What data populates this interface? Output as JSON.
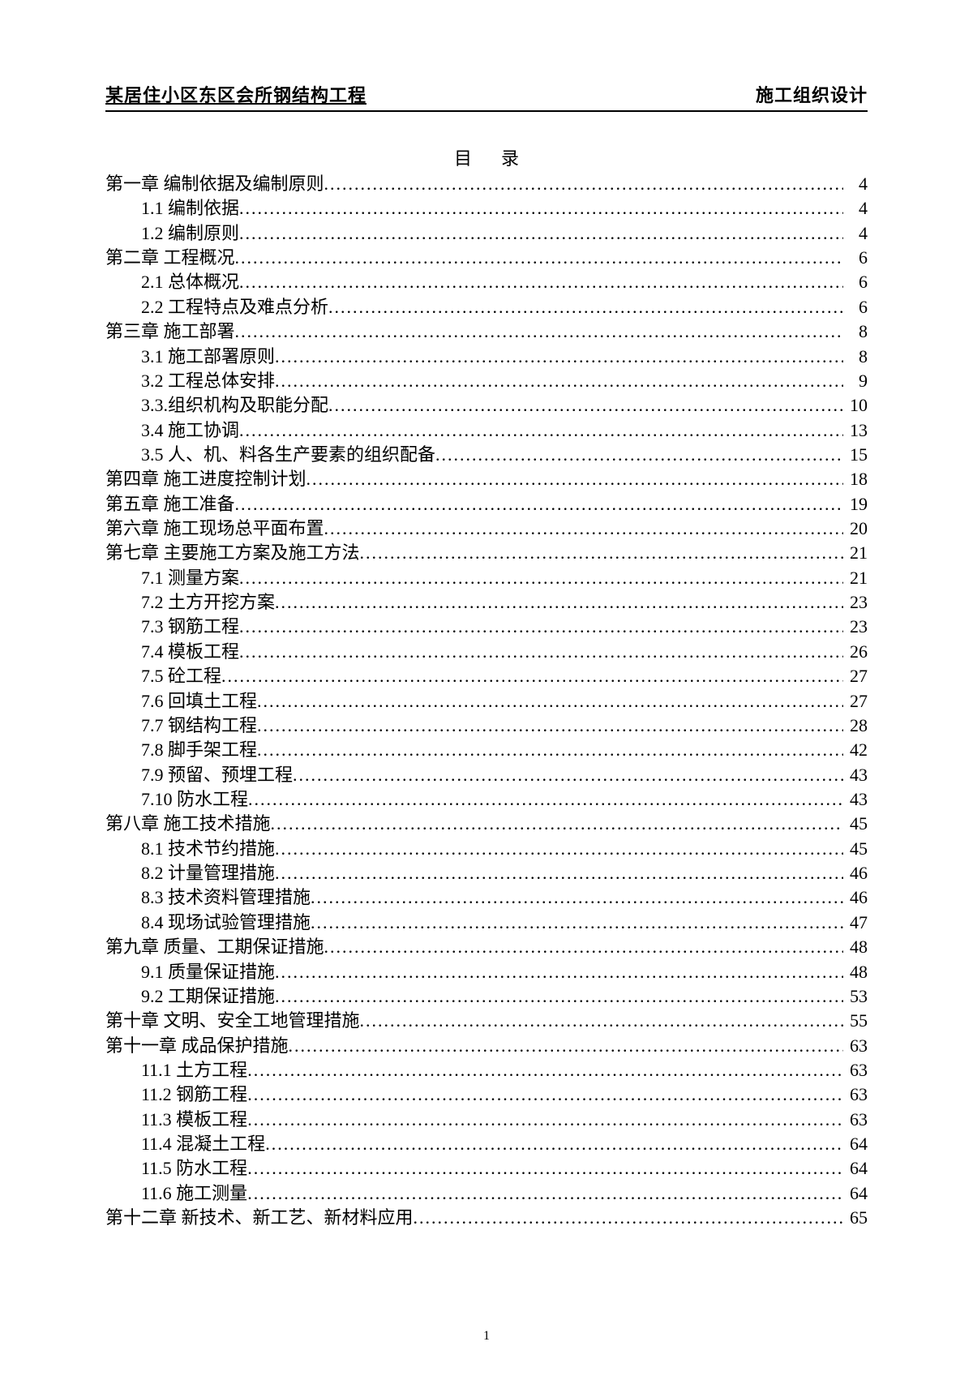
{
  "header": {
    "left": "某居住小区东区会所钢结构工程",
    "right": "施工组织设计"
  },
  "toc_title": "目录",
  "page_number": "1",
  "toc": [
    {
      "level": 1,
      "label": "第一章 编制依据及编制原则",
      "page": "4"
    },
    {
      "level": 2,
      "label": "1.1 编制依据",
      "page": "4"
    },
    {
      "level": 2,
      "label": "1.2 编制原则",
      "page": "4"
    },
    {
      "level": 1,
      "label": "第二章 工程概况",
      "page": "6"
    },
    {
      "level": 2,
      "label": "2.1 总体概况",
      "page": "6"
    },
    {
      "level": 2,
      "label": "2.2 工程特点及难点分析",
      "page": "6"
    },
    {
      "level": 1,
      "label": "第三章 施工部署",
      "page": "8"
    },
    {
      "level": 2,
      "label": "3.1 施工部署原则",
      "page": "8"
    },
    {
      "level": 2,
      "label": "3.2 工程总体安排",
      "page": "9"
    },
    {
      "level": 2,
      "label": "3.3.组织机构及职能分配",
      "page": "10"
    },
    {
      "level": 2,
      "label": "3.4 施工协调",
      "page": "13"
    },
    {
      "level": 2,
      "label": "3.5 人、机、料各生产要素的组织配备",
      "page": "15"
    },
    {
      "level": 1,
      "label": "第四章 施工进度控制计划",
      "page": "18"
    },
    {
      "level": 1,
      "label": "第五章 施工准备",
      "page": "19"
    },
    {
      "level": 1,
      "label": "第六章 施工现场总平面布置",
      "page": "20"
    },
    {
      "level": 1,
      "label": "第七章 主要施工方案及施工方法",
      "page": "21"
    },
    {
      "level": 2,
      "label": "7.1 测量方案",
      "page": "21"
    },
    {
      "level": 2,
      "label": "7.2 土方开挖方案",
      "page": "23"
    },
    {
      "level": 2,
      "label": "7.3 钢筋工程",
      "page": "23"
    },
    {
      "level": 2,
      "label": "7.4 模板工程",
      "page": "26"
    },
    {
      "level": 2,
      "label": "7.5 砼工程",
      "page": "27"
    },
    {
      "level": 2,
      "label": "7.6 回填土工程",
      "page": "27"
    },
    {
      "level": 2,
      "label": "7.7 钢结构工程",
      "page": "28"
    },
    {
      "level": 2,
      "label": "7.8 脚手架工程",
      "page": "42"
    },
    {
      "level": 2,
      "label": "7.9 预留、预埋工程",
      "page": "43"
    },
    {
      "level": 2,
      "label": "7.10 防水工程",
      "page": "43"
    },
    {
      "level": 1,
      "label": "第八章 施工技术措施",
      "page": "45"
    },
    {
      "level": 2,
      "label": "8.1 技术节约措施",
      "page": "45"
    },
    {
      "level": 2,
      "label": "8.2 计量管理措施",
      "page": "46"
    },
    {
      "level": 2,
      "label": "8.3 技术资料管理措施",
      "page": "46"
    },
    {
      "level": 2,
      "label": "8.4 现场试验管理措施",
      "page": "47"
    },
    {
      "level": 1,
      "label": "第九章 质量、工期保证措施",
      "page": "48"
    },
    {
      "level": 2,
      "label": "9.1 质量保证措施",
      "page": "48"
    },
    {
      "level": 2,
      "label": "9.2 工期保证措施",
      "page": "53"
    },
    {
      "level": 1,
      "label": "第十章 文明、安全工地管理措施",
      "page": "55"
    },
    {
      "level": 1,
      "label": "第十一章 成品保护措施",
      "page": "63"
    },
    {
      "level": 2,
      "label": "11.1 土方工程",
      "page": "63"
    },
    {
      "level": 2,
      "label": "11.2 钢筋工程",
      "page": "63"
    },
    {
      "level": 2,
      "label": "11.3 模板工程",
      "page": "63"
    },
    {
      "level": 2,
      "label": "11.4 混凝土工程",
      "page": "64"
    },
    {
      "level": 2,
      "label": "11.5 防水工程",
      "page": "64"
    },
    {
      "level": 2,
      "label": "11.6 施工测量",
      "page": "64"
    },
    {
      "level": 1,
      "label": "第十二章 新技术、新工艺、新材料应用",
      "page": "65"
    }
  ]
}
